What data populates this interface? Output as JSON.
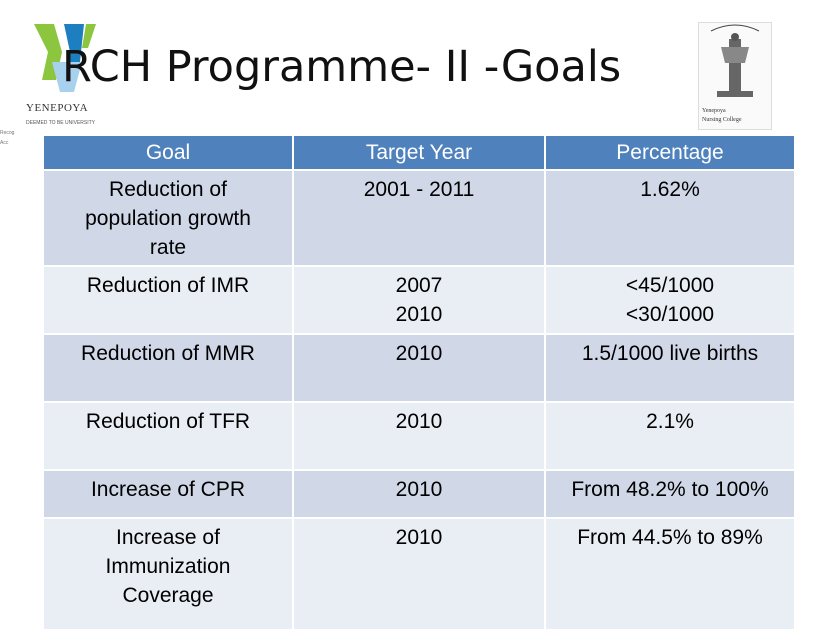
{
  "slide": {
    "title": "RCH Programme- II -Goals"
  },
  "logos": {
    "left": {
      "name": "YENEPOYA",
      "subtext": "DEEMED TO BE UNIVERSITY",
      "side_fragments": [
        "Recog",
        "Acc"
      ]
    },
    "right": {
      "line1": "Yenepoya",
      "line2": "Nursing College"
    }
  },
  "table": {
    "headers": [
      "Goal",
      "Target Year",
      "Percentage"
    ],
    "rows": [
      {
        "goal": "Reduction of\npopulation growth\nrate",
        "year": "2001 - 2011",
        "percentage": "1.62%"
      },
      {
        "goal": "Reduction of IMR",
        "year": "2007\n2010",
        "percentage": "<45/1000\n<30/1000"
      },
      {
        "goal": "Reduction of MMR",
        "year": "2010",
        "percentage": "1.5/1000 live births"
      },
      {
        "goal": "Reduction of TFR",
        "year": "2010",
        "percentage": "2.1%"
      },
      {
        "goal": "Increase of CPR",
        "year": "2010",
        "percentage": "From 48.2% to 100%"
      },
      {
        "goal": "Increase of\nImmunization\nCoverage",
        "year": "2010",
        "percentage": "From 44.5% to 89%"
      }
    ]
  },
  "colors": {
    "header_bg": "#4f81bd",
    "row_dark": "#d0d8e8",
    "row_light": "#e9edf4",
    "logo_green": "#8cc63f",
    "logo_blue": "#1e7fc0"
  }
}
